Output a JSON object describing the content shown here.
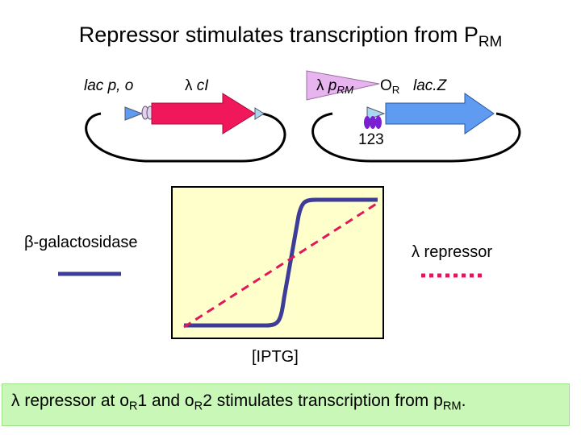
{
  "title": {
    "text": "Repressor stimulates transcription from P",
    "sub": "RM"
  },
  "construct": {
    "lac_label": "lac p, o",
    "lambda_symbol": "λ",
    "ci_label": "cI",
    "prm_text": "p",
    "prm_sub": "RM",
    "or_text": "O",
    "or_sub": "R",
    "lacz_label": "lac.Z",
    "sites_label": "123"
  },
  "graph": {
    "left_label": "β-galactosidase",
    "right_label": "λ repressor",
    "x_label": "[IPTG]"
  },
  "footer": {
    "part1": "λ repressor at o",
    "sub1": "R",
    "part2": "1 and o",
    "sub2": "R",
    "part3": "2 stimulates transcription from p",
    "sub3": "RM",
    "part4": "."
  },
  "colors": {
    "ci_gene": "#f0185a",
    "lacz_gene": "#5f9bf0",
    "promoter_fill": "#e8b4f0",
    "operator_fill": "#a8d8f0",
    "beta_gal_line": "#3d3d99",
    "repressor_line": "#e0185a",
    "plot_background": "#ffffcc",
    "footer_background": "#c8f7b8",
    "repressor_dimer": "#7a1fd1"
  }
}
